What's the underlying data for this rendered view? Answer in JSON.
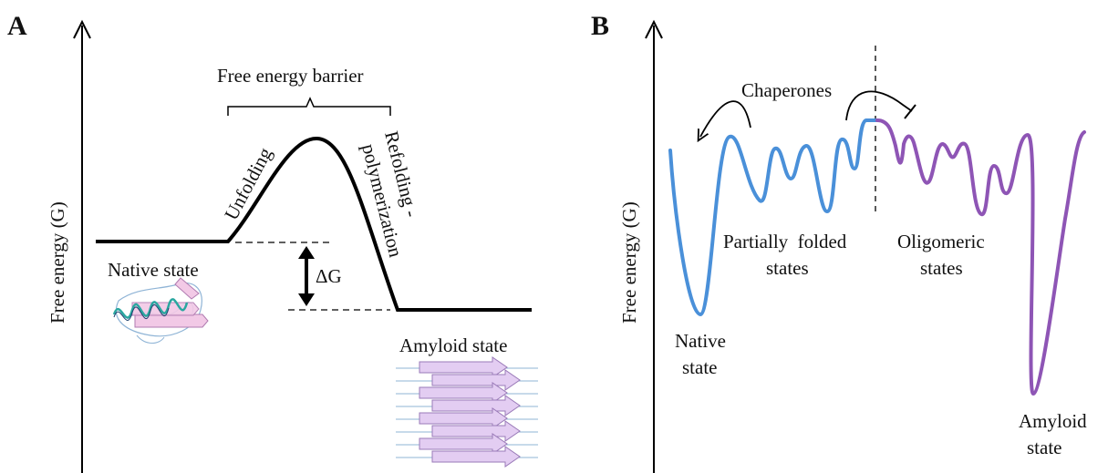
{
  "panels": {
    "A": {
      "label": "A",
      "y_axis_label": "Free energy (G)",
      "barrier_label": "Free energy barrier",
      "unfolding_label": "Unfolding",
      "refolding_label_line1": "Refolding -",
      "refolding_label_line2": "polymerization",
      "delta_g_label": "ΔG",
      "native_label": "Native state",
      "amyloid_label": "Amyloid state"
    },
    "B": {
      "label": "B",
      "y_axis_label": "Free energy (G)",
      "chaperones_label": "Chaperones",
      "partially_line1": "Partially  folded",
      "partially_line2": "states",
      "oligomeric_line1": "Oligomeric",
      "oligomeric_line2": "states",
      "native_line1": "Native",
      "native_line2": "state",
      "amyloid_line1": "Amyloid",
      "amyloid_line2": "state"
    }
  },
  "colors": {
    "axis": "#111111",
    "curve_a": "#000000",
    "curve_b_blue": "#4a90d9",
    "curve_b_purple": "#8e55b5",
    "protein_pink": "#f2c9e6",
    "protein_teal": "#2aa7a0",
    "amyloid_fill": "#e3cdf2",
    "amyloid_stroke": "#9a7ab8"
  }
}
